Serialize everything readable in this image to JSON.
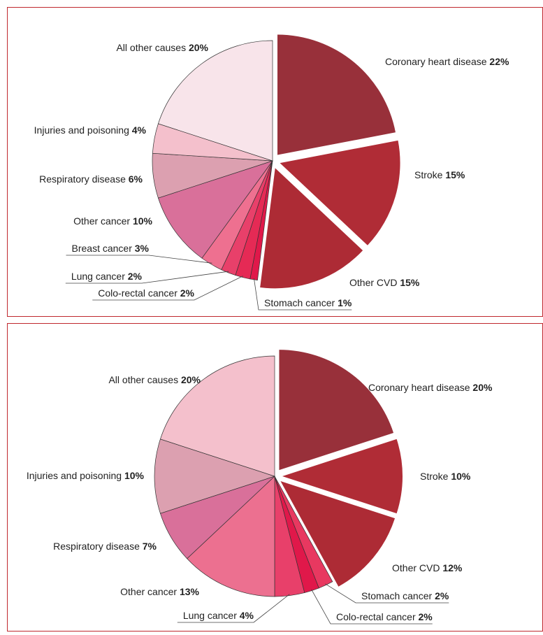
{
  "chart_data": [
    {
      "type": "pie",
      "categories": [
        "Coronary heart disease",
        "Stroke",
        "Other CVD",
        "Stomach cancer",
        "Colo-rectal cancer",
        "Lung cancer",
        "Breast cancer",
        "Other cancer",
        "Respiratory disease",
        "Injuries and poisoning",
        "All other causes"
      ],
      "values": [
        22,
        15,
        15,
        1,
        2,
        2,
        3,
        10,
        6,
        4,
        20
      ],
      "value_labels": [
        "22%",
        "15%",
        "15%",
        "1%",
        "2%",
        "2%",
        "3%",
        "10%",
        "6%",
        "4%",
        "20%"
      ],
      "colors": [
        "#98303a",
        "#b02c36",
        "#ad2b35",
        "#e0184a",
        "#e52a55",
        "#e8406a",
        "#ee7090",
        "#d9709a",
        "#dca0b0",
        "#f4c0cc",
        "#f8e4ea"
      ]
    },
    {
      "type": "pie",
      "categories": [
        "Coronary heart disease",
        "Stroke",
        "Other CVD",
        "Stomach cancer",
        "Colo-rectal cancer",
        "Lung cancer",
        "Other cancer",
        "Respiratory disease",
        "Injuries and poisoning",
        "All other causes"
      ],
      "values": [
        20,
        10,
        12,
        2,
        2,
        4,
        13,
        7,
        10,
        20
      ],
      "value_labels": [
        "20%",
        "10%",
        "12%",
        "2%",
        "2%",
        "4%",
        "13%",
        "7%",
        "10%",
        "20%"
      ],
      "colors": [
        "#98303a",
        "#b02c36",
        "#ad2b35",
        "#e83860",
        "#e0184a",
        "#e8406a",
        "#ec7090",
        "#d9709a",
        "#dca0b0",
        "#f4c0cc"
      ]
    }
  ]
}
